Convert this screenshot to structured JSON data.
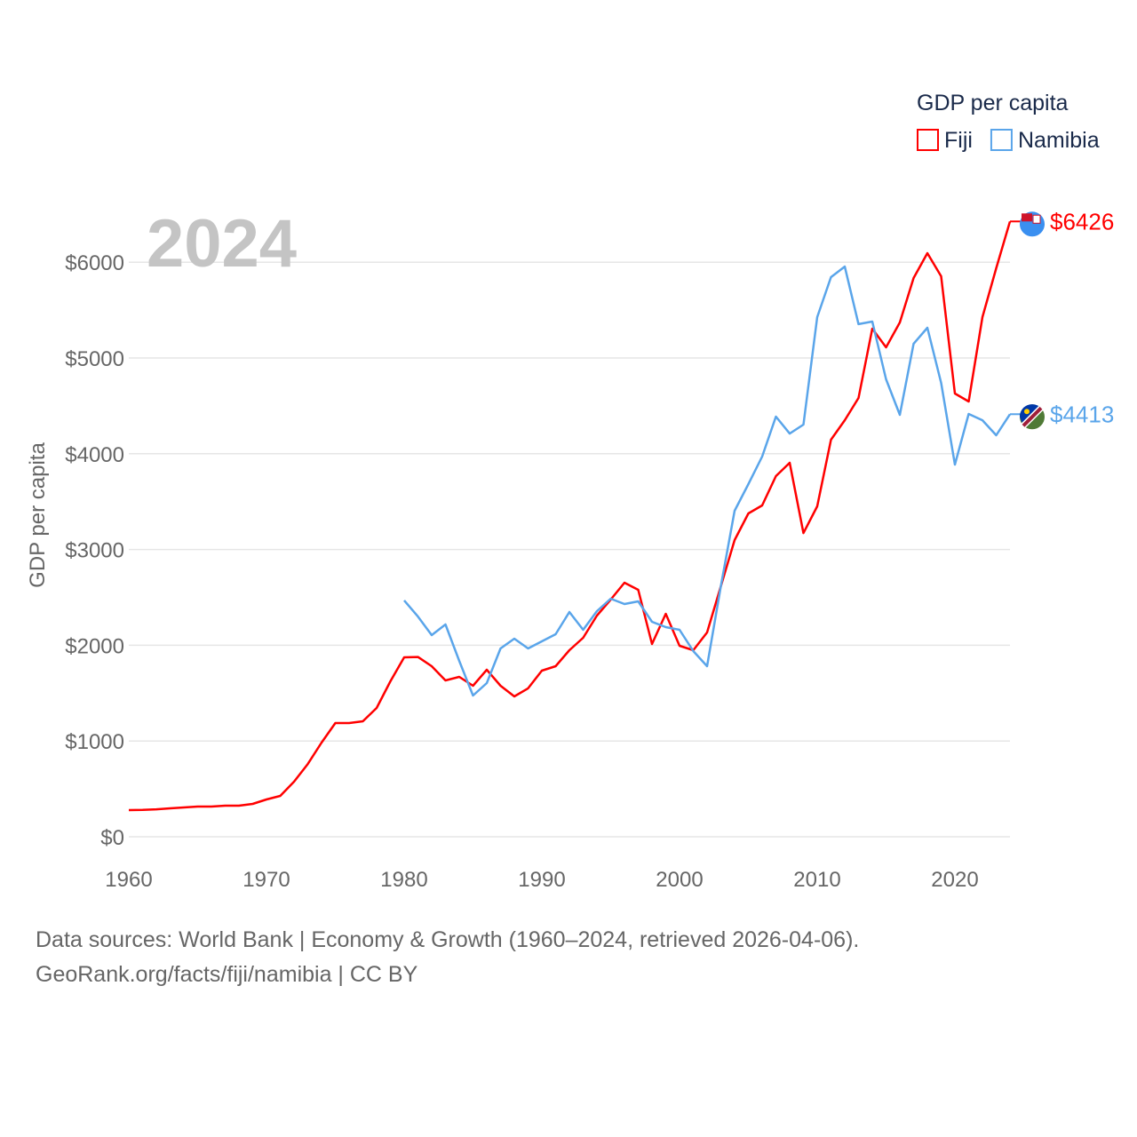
{
  "chart_data": {
    "type": "line",
    "title": "",
    "year_label": "2024",
    "xlabel": "",
    "ylabel": "GDP per capita",
    "xlim": [
      1960,
      2024
    ],
    "ylim": [
      0,
      6500
    ],
    "x_ticks": [
      1960,
      1970,
      1980,
      1990,
      2000,
      2010,
      2020
    ],
    "x_tick_labels": [
      "1960",
      "1970",
      "1980",
      "1990",
      "2000",
      "2010",
      "2020"
    ],
    "y_ticks": [
      0,
      1000,
      2000,
      3000,
      4000,
      5000,
      6000
    ],
    "y_tick_labels": [
      "$0",
      "$1000",
      "$2000",
      "$3000",
      "$4000",
      "$5000",
      "$6000"
    ],
    "grid": true,
    "legend": {
      "title": "GDP per capita",
      "placement": "top-right"
    },
    "series": [
      {
        "name": "Fiji",
        "color": "#ff0000",
        "start_year": 1960,
        "end_label": "$6426",
        "values": [
          278,
          280,
          287,
          297,
          306,
          315,
          315,
          325,
          325,
          343,
          390,
          427,
          575,
          760,
          983,
          1187,
          1187,
          1206,
          1345,
          1623,
          1874,
          1878,
          1781,
          1633,
          1670,
          1577,
          1744,
          1577,
          1466,
          1550,
          1735,
          1781,
          1948,
          2078,
          2310,
          2477,
          2653,
          2579,
          2013,
          2328,
          1994,
          1948,
          2134,
          2616,
          3098,
          3377,
          3460,
          3766,
          3905,
          3172,
          3451,
          4147,
          4350,
          4583,
          5306,
          5111,
          5371,
          5835,
          6095,
          5853,
          4629,
          4545,
          5427,
          5937,
          6426
        ]
      },
      {
        "name": "Namibia",
        "color": "#5aa5ea",
        "start_year": 1980,
        "end_label": "$4413",
        "values": [
          2468,
          2300,
          2106,
          2217,
          1837,
          1475,
          1605,
          1967,
          2069,
          1967,
          2041,
          2115,
          2347,
          2161,
          2356,
          2486,
          2430,
          2458,
          2245,
          2189,
          2161,
          1939,
          1781,
          2616,
          3404,
          3683,
          3970,
          4388,
          4211,
          4304,
          5427,
          5844,
          5955,
          5353,
          5380,
          4777,
          4406,
          5148,
          5315,
          4740,
          3887,
          4416,
          4350,
          4193,
          4413
        ]
      }
    ]
  },
  "footer": {
    "line1": "Data sources: World Bank | Economy & Growth (1960–2024, retrieved 2026-04-06).",
    "line2": "GeoRank.org/facts/fiji/namibia | CC BY"
  }
}
